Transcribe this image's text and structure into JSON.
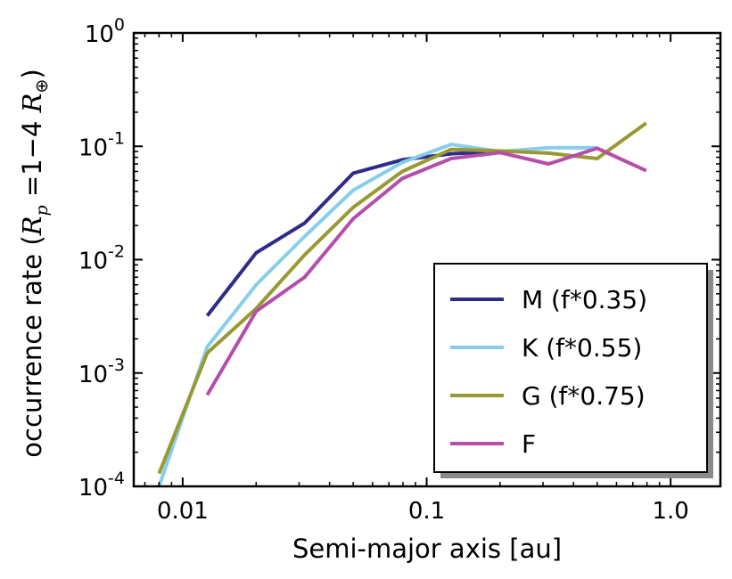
{
  "chart_data": {
    "type": "line",
    "xscale": "log",
    "yscale": "log",
    "xlim": [
      0.0063,
      1.6
    ],
    "ylim": [
      0.0001,
      1
    ],
    "xlabel": "Semi-major axis [au]",
    "ylabel": {
      "prefix": "occurrence rate (",
      "r": "R",
      "r_sub": "p",
      "middle": " =1−4 ",
      "unit": "R",
      "unit_sub": "⊕",
      "suffix": ")"
    },
    "xticks": [
      {
        "value": 0.01,
        "label": "0.01"
      },
      {
        "value": 0.1,
        "label": "0.1"
      },
      {
        "value": 1.0,
        "label": "1.0"
      }
    ],
    "yticks": [
      {
        "value": 0.0001,
        "base": "10",
        "exp": "-4"
      },
      {
        "value": 0.001,
        "base": "10",
        "exp": "-3"
      },
      {
        "value": 0.01,
        "base": "10",
        "exp": "-2"
      },
      {
        "value": 0.1,
        "base": "10",
        "exp": "-1"
      },
      {
        "value": 1,
        "base": "10",
        "exp": "0"
      }
    ],
    "legend_position": "lower-right",
    "series": [
      {
        "name": "M (f*0.35)",
        "color": "#2e2b8a",
        "x": [
          0.0126,
          0.02,
          0.0316,
          0.05,
          0.0794,
          0.126,
          0.2
        ],
        "y": [
          0.0032,
          0.0115,
          0.021,
          0.058,
          0.076,
          0.086,
          0.09
        ]
      },
      {
        "name": "K (f*0.55)",
        "color": "#87ceeb",
        "x": [
          0.008,
          0.0126,
          0.02,
          0.0316,
          0.05,
          0.0794,
          0.126,
          0.2,
          0.316,
          0.5
        ],
        "y": [
          0.0001,
          0.0017,
          0.006,
          0.016,
          0.041,
          0.072,
          0.104,
          0.09,
          0.097,
          0.097
        ]
      },
      {
        "name": "G (f*0.75)",
        "color": "#999933",
        "x": [
          0.008,
          0.0126,
          0.02,
          0.0316,
          0.05,
          0.0794,
          0.126,
          0.2,
          0.316,
          0.5,
          0.794
        ],
        "y": [
          0.00013,
          0.0015,
          0.0037,
          0.011,
          0.029,
          0.06,
          0.094,
          0.091,
          0.087,
          0.078,
          0.16
        ]
      },
      {
        "name": "F",
        "color": "#b44eaa",
        "x": [
          0.0126,
          0.02,
          0.0316,
          0.05,
          0.0794,
          0.126,
          0.2,
          0.316,
          0.5,
          0.794
        ],
        "y": [
          0.00064,
          0.0035,
          0.007,
          0.023,
          0.052,
          0.078,
          0.088,
          0.07,
          0.096,
          0.061
        ]
      }
    ]
  }
}
